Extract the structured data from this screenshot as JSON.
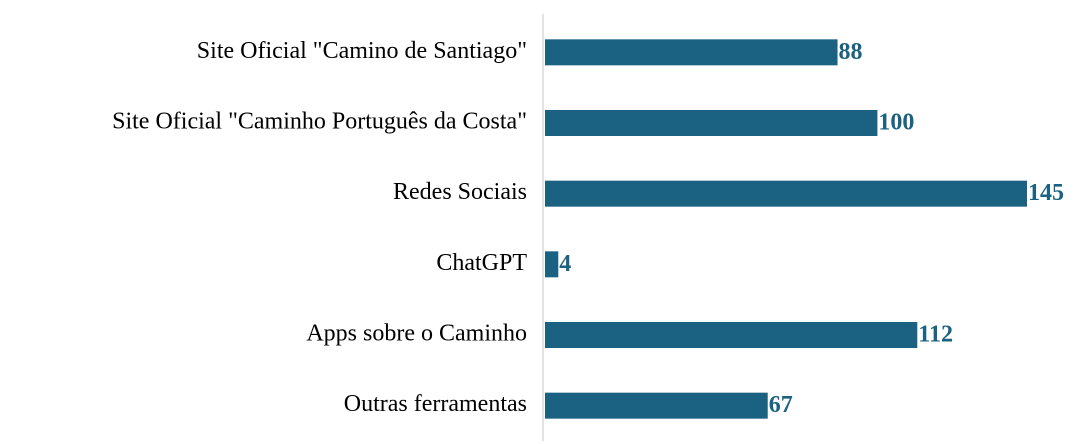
{
  "chart_data": {
    "type": "bar",
    "orientation": "horizontal",
    "categories": [
      "Site Oficial \"Camino de Santiago\"",
      "Site Oficial \"Caminho Português da Costa\"",
      "Redes Sociais",
      "ChatGPT",
      "Apps sobre o Caminho",
      "Outras ferramentas"
    ],
    "values": [
      88,
      100,
      145,
      4,
      112,
      67
    ],
    "color": "#1b6282"
  }
}
